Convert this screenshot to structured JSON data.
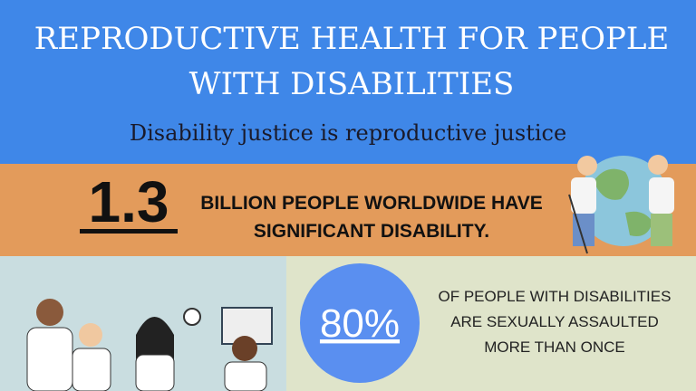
{
  "header": {
    "title_lines": [
      "REPRODUCTIVE HEALTH FOR PEOPLE",
      "WITH DISABILITIES"
    ],
    "subtitle": "Disability justice is reproductive justice"
  },
  "stat_1": {
    "figure": "1.3",
    "text_lines": [
      "BILLION PEOPLE WORLDWIDE HAVE",
      "SIGNIFICANT DISABILITY."
    ]
  },
  "stat_2": {
    "figure": "80%",
    "text_lines": [
      "OF PEOPLE WITH DISABILITIES",
      "ARE SEXUALLY  ASSAULTED",
      "MORE THAN ONCE"
    ]
  }
}
